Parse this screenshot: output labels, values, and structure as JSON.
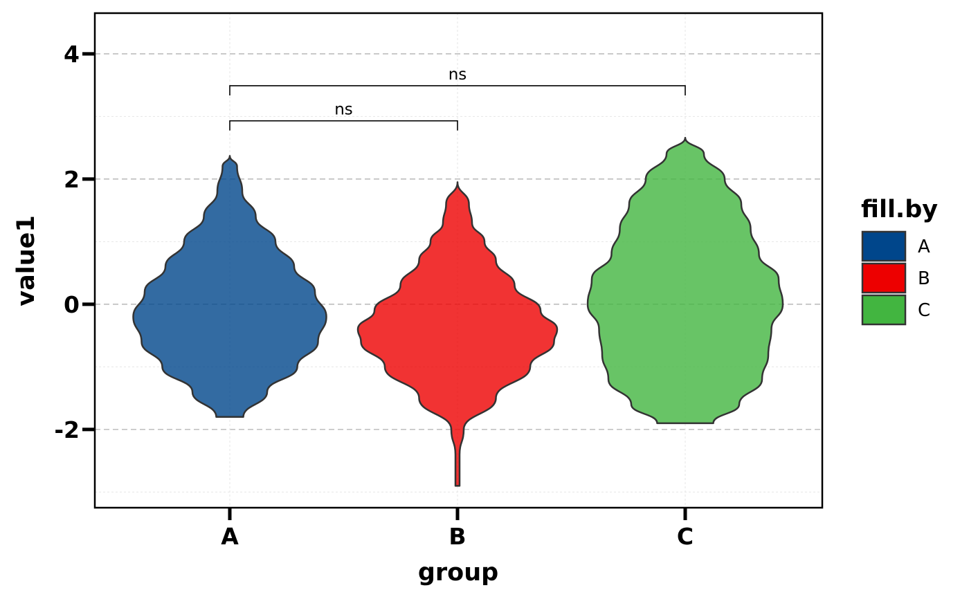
{
  "chart_data": {
    "type": "violin",
    "xlabel": "group",
    "ylabel": "value1",
    "categories": [
      "A",
      "B",
      "C"
    ],
    "ylim": [
      -3.25,
      4.65
    ],
    "yticks": [
      -2,
      0,
      2,
      4
    ],
    "ytick_labels": [
      "-2",
      "0",
      "2",
      "4"
    ],
    "grid": true,
    "legend": {
      "title": "fill.by",
      "position": "right",
      "items": [
        {
          "label": "A",
          "color": "#00468B"
        },
        {
          "label": "B",
          "color": "#ED0000"
        },
        {
          "label": "C",
          "color": "#42B540"
        }
      ]
    },
    "violins": [
      {
        "group": "A",
        "color": "#00468B",
        "min": -1.8,
        "max": 2.37,
        "profile": [
          [
            -1.8,
            0.13
          ],
          [
            -1.4,
            0.36
          ],
          [
            -1.0,
            0.65
          ],
          [
            -0.6,
            0.85
          ],
          [
            -0.2,
            0.93
          ],
          [
            0.2,
            0.82
          ],
          [
            0.6,
            0.62
          ],
          [
            1.0,
            0.44
          ],
          [
            1.4,
            0.25
          ],
          [
            1.8,
            0.12
          ],
          [
            2.2,
            0.07
          ],
          [
            2.37,
            0.0
          ]
        ]
      },
      {
        "group": "B",
        "color": "#ED0000",
        "min": -2.9,
        "max": 1.95,
        "profile": [
          [
            -2.9,
            0.02
          ],
          [
            -2.4,
            0.02
          ],
          [
            -2.0,
            0.06
          ],
          [
            -1.5,
            0.37
          ],
          [
            -1.0,
            0.7
          ],
          [
            -0.6,
            0.93
          ],
          [
            -0.4,
            0.96
          ],
          [
            -0.1,
            0.8
          ],
          [
            0.3,
            0.55
          ],
          [
            0.7,
            0.37
          ],
          [
            1.0,
            0.26
          ],
          [
            1.3,
            0.14
          ],
          [
            1.6,
            0.11
          ],
          [
            1.95,
            0.0
          ]
        ]
      },
      {
        "group": "C",
        "color": "#42B540",
        "min": -1.9,
        "max": 2.66,
        "profile": [
          [
            -1.9,
            0.27
          ],
          [
            -1.6,
            0.52
          ],
          [
            -1.2,
            0.74
          ],
          [
            -0.8,
            0.8
          ],
          [
            -0.4,
            0.83
          ],
          [
            0.0,
            0.94
          ],
          [
            0.4,
            0.9
          ],
          [
            0.8,
            0.71
          ],
          [
            1.2,
            0.63
          ],
          [
            1.6,
            0.54
          ],
          [
            2.0,
            0.38
          ],
          [
            2.4,
            0.18
          ],
          [
            2.66,
            0.0
          ]
        ]
      }
    ],
    "comparisons": [
      {
        "from": "A",
        "to": "B",
        "y": 2.93,
        "label": "ns"
      },
      {
        "from": "A",
        "to": "C",
        "y": 3.49,
        "label": "ns"
      }
    ]
  }
}
